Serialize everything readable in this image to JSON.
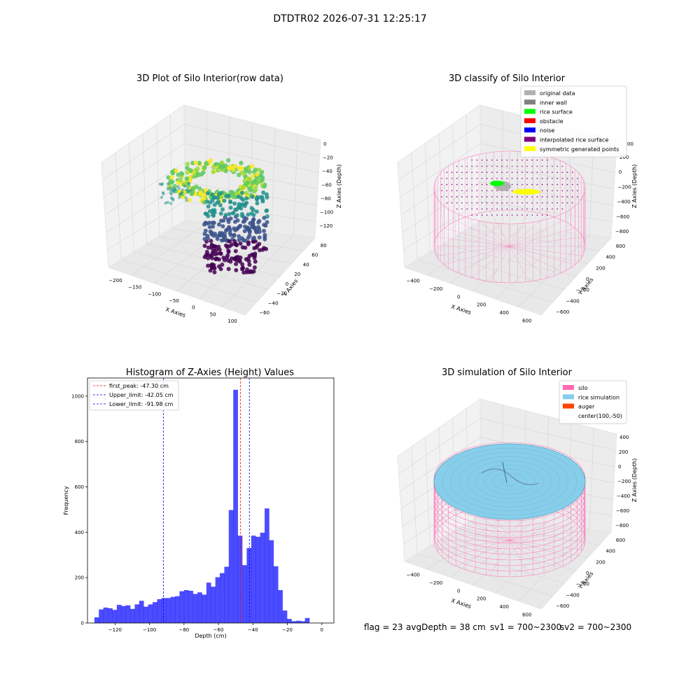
{
  "figure": {
    "suptitle": "DTDTR02 2026-07-31 12:25:17"
  },
  "colors": {
    "viridis": [
      "#440154",
      "#3b528b",
      "#21918c",
      "#5ec962",
      "#fde725"
    ],
    "histogram_bars": "#0000ff",
    "first_peak_line": "#ff0000",
    "limit_lines": "#0000ff",
    "pane": "#f2f2f2",
    "silo_wire": "#ff69b4",
    "rice_fill": "#87ceeb"
  },
  "chart_data": [
    {
      "type": "scatter",
      "projection": "3d",
      "title": "3D Plot of Silo Interior(row data)",
      "xlabel": "X Axies",
      "ylabel": "Y Axies",
      "zlabel": "Z Axies (Depth)",
      "xticks": [
        "−200",
        "−150",
        "−100",
        "−50",
        "0",
        "50",
        "100"
      ],
      "yticks": [
        "−60",
        "−40",
        "−20",
        "0",
        "20",
        "40",
        "60",
        "80"
      ],
      "zticks": [
        "0",
        "−20",
        "−40",
        "−60",
        "−80",
        "−100",
        "−120"
      ],
      "xlim": [
        -220,
        120
      ],
      "ylim": [
        -65,
        85
      ],
      "zlim": [
        -130,
        5
      ],
      "colormap": "viridis",
      "grid": true
    },
    {
      "type": "scatter",
      "projection": "3d",
      "title": "3D classify of Silo Interior",
      "xlabel": "X Axies",
      "ylabel": "Y Axies",
      "zlabel": "Z Axies (Depth)",
      "xticks": [
        "−400",
        "−200",
        "0",
        "200",
        "400",
        "600"
      ],
      "yticks": [
        "−600",
        "−400",
        "−200",
        "0",
        "200",
        "400",
        "600"
      ],
      "zticks": [
        "200",
        "0",
        "−200",
        "−400",
        "−600",
        "−800"
      ],
      "zticks_top_partial": "00",
      "legend": {
        "placement": "upper right",
        "entries": [
          {
            "label": "original data",
            "color": "#b0b0b0"
          },
          {
            "label": "inner wall",
            "color": "#808080"
          },
          {
            "label": "rice surface",
            "color": "#00ff00"
          },
          {
            "label": "obstacle",
            "color": "#ff0000"
          },
          {
            "label": "noise",
            "color": "#0000ff"
          },
          {
            "label": "interpolated rice surface",
            "color": "#800080"
          },
          {
            "label": "symmetric generated points",
            "color": "#ffff00"
          }
        ]
      },
      "grid": true
    },
    {
      "type": "bar",
      "title": "Histogram of Z-Axies (Height) Values",
      "xlabel": "Depth (cm)",
      "ylabel": "Frequency",
      "xlim": [
        -136,
        7
      ],
      "ylim": [
        0,
        1080
      ],
      "xticks": [
        -120,
        -100,
        -80,
        -60,
        -40,
        -20,
        0
      ],
      "yticks": [
        0,
        200,
        400,
        600,
        800,
        1000
      ],
      "bin_start": -132,
      "bin_width": 2.6,
      "values": [
        25,
        60,
        68,
        65,
        58,
        80,
        75,
        78,
        62,
        82,
        98,
        72,
        82,
        92,
        105,
        110,
        110,
        115,
        118,
        140,
        145,
        142,
        128,
        135,
        125,
        178,
        160,
        202,
        220,
        248,
        498,
        1028,
        385,
        255,
        330,
        385,
        380,
        398,
        505,
        365,
        250,
        145,
        55,
        18,
        8,
        10,
        8,
        22
      ],
      "vlines": [
        {
          "label": "first_peak: -47.30 cm",
          "x": -47.3,
          "color": "#ff0000"
        },
        {
          "label": "Upper_limit: -42.05 cm",
          "x": -42.05,
          "color": "#0000ff"
        },
        {
          "label": "Lower_limit: -91.98 cm",
          "x": -91.98,
          "color": "#0000ff"
        }
      ],
      "legend": {
        "placement": "upper left"
      }
    },
    {
      "type": "surface",
      "projection": "3d",
      "title": "3D simulation of Silo Interior",
      "xlabel": "X Axies",
      "ylabel": "Y Axies",
      "zlabel": "Z Axies (Depth)",
      "xticks": [
        "−400",
        "−200",
        "0",
        "200",
        "400",
        "600"
      ],
      "yticks": [
        "−600",
        "−400",
        "−200",
        "0",
        "200",
        "400",
        "600"
      ],
      "zticks": [
        "400",
        "200",
        "0",
        "−200",
        "−400",
        "−600",
        "−800"
      ],
      "legend": {
        "placement": "upper right",
        "entries": [
          {
            "label": "silo",
            "color": "#ff69b4"
          },
          {
            "label": "rice simulation",
            "color": "#87ceeb"
          },
          {
            "label": "auger",
            "color": "#ff4500"
          },
          {
            "label": "center(100,-50)",
            "color": ""
          }
        ]
      },
      "grid": true
    }
  ],
  "footer": {
    "flag": "flag = 23",
    "avg_depth": "avgDepth = 38 cm",
    "sv1": "sv1 = 700~2300",
    "sv2": "sv2 = 700~2300"
  }
}
